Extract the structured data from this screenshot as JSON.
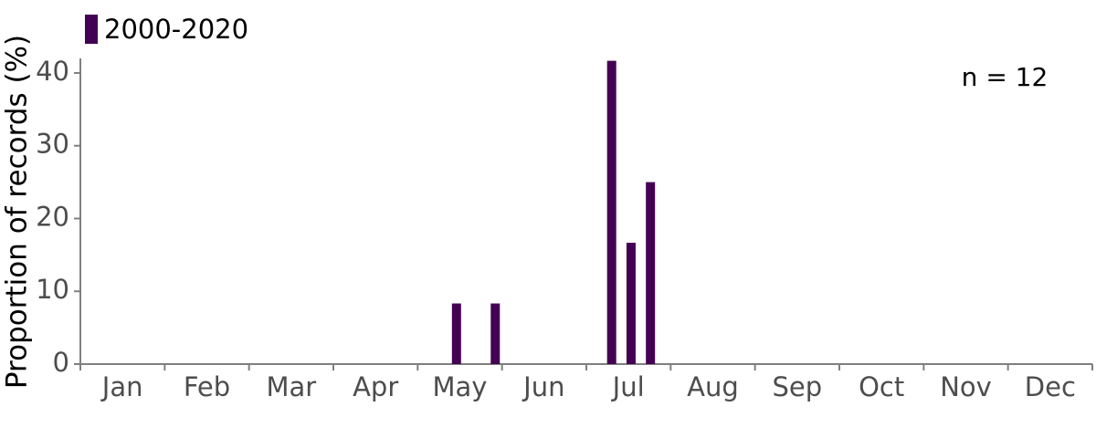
{
  "chart_data": {
    "type": "bar",
    "y_label": "Proportion of records (%)",
    "annotation": "n = 12",
    "categories": [
      "Jan",
      "Feb",
      "Mar",
      "Apr",
      "May",
      "Jun",
      "Jul",
      "Aug",
      "Sep",
      "Oct",
      "Nov",
      "Dec"
    ],
    "series": [
      {
        "name": "2000-2020",
        "color": "#440154",
        "x": [
          4.46,
          4.92,
          6.3,
          6.53,
          6.76
        ],
        "values": [
          8.33,
          8.33,
          41.67,
          16.67,
          25
        ]
      }
    ],
    "xlim": [
      0,
      12
    ],
    "ylim": [
      0,
      42
    ],
    "yticks": [
      0,
      10,
      20,
      30,
      40
    ]
  }
}
